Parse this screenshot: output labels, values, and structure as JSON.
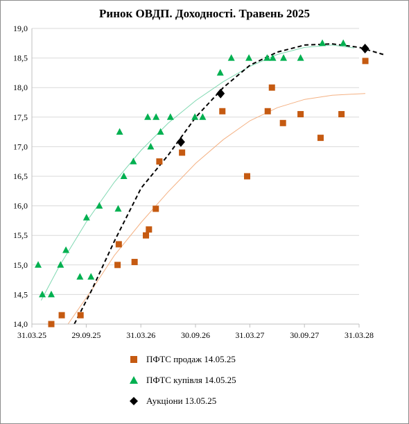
{
  "chart_data": {
    "type": "scatter",
    "title": "Ринок ОВДП. Доходності. Травень 2025",
    "xlabel": "",
    "ylabel": "",
    "x_axis_type": "date",
    "xlim": [
      "2025-03-31",
      "2028-03-31"
    ],
    "x_ticks": [
      "2025-03-31",
      "2025-09-29",
      "2026-03-31",
      "2026-09-30",
      "2027-03-31",
      "2027-09-30",
      "2028-03-31"
    ],
    "x_tick_labels": [
      "31.03.25",
      "29.09.25",
      "31.03.26",
      "30.09.26",
      "31.03.27",
      "30.09.27",
      "31.03.28"
    ],
    "ylim": [
      14.0,
      19.0
    ],
    "y_ticks": [
      14.0,
      14.5,
      15.0,
      15.5,
      16.0,
      16.5,
      17.0,
      17.5,
      18.0,
      18.5,
      19.0
    ],
    "y_tick_labels": [
      "14,0",
      "14,5",
      "15,0",
      "15,5",
      "16,0",
      "16,5",
      "17,0",
      "17,5",
      "18,0",
      "18,5",
      "19,0"
    ],
    "grid": "horizontal",
    "legend_position": "bottom",
    "series": [
      {
        "name": "ПФТС продаж 14.05.25",
        "marker": "square",
        "color": "#c55a11",
        "trend_color": "#f4b183",
        "points": [
          {
            "x": "2025-06-04",
            "y": 14.0
          },
          {
            "x": "2025-07-09",
            "y": 14.15
          },
          {
            "x": "2025-09-10",
            "y": 14.15
          },
          {
            "x": "2026-01-12",
            "y": 15.0
          },
          {
            "x": "2026-01-16",
            "y": 15.35
          },
          {
            "x": "2026-03-10",
            "y": 15.05
          },
          {
            "x": "2026-04-17",
            "y": 15.5
          },
          {
            "x": "2026-04-27",
            "y": 15.6
          },
          {
            "x": "2026-05-20",
            "y": 15.95
          },
          {
            "x": "2026-06-01",
            "y": 16.75
          },
          {
            "x": "2026-08-16",
            "y": 16.9
          },
          {
            "x": "2026-12-29",
            "y": 17.6
          },
          {
            "x": "2027-03-22",
            "y": 16.5
          },
          {
            "x": "2027-05-30",
            "y": 17.6
          },
          {
            "x": "2027-06-13",
            "y": 18.0
          },
          {
            "x": "2027-07-20",
            "y": 17.4
          },
          {
            "x": "2027-09-17",
            "y": 17.55
          },
          {
            "x": "2027-11-23",
            "y": 17.15
          },
          {
            "x": "2028-02-01",
            "y": 17.55
          },
          {
            "x": "2028-04-21",
            "y": 18.45
          }
        ],
        "trend": [
          {
            "x": "2025-07-30",
            "y": 14.0
          },
          {
            "x": "2025-10-15",
            "y": 14.56
          },
          {
            "x": "2026-01-01",
            "y": 15.16
          },
          {
            "x": "2026-04-01",
            "y": 15.72
          },
          {
            "x": "2026-07-01",
            "y": 16.24
          },
          {
            "x": "2026-10-01",
            "y": 16.72
          },
          {
            "x": "2027-01-01",
            "y": 17.12
          },
          {
            "x": "2027-04-01",
            "y": 17.44
          },
          {
            "x": "2027-07-01",
            "y": 17.66
          },
          {
            "x": "2027-10-01",
            "y": 17.8
          },
          {
            "x": "2028-01-01",
            "y": 17.87
          },
          {
            "x": "2028-04-21",
            "y": 17.9
          }
        ]
      },
      {
        "name": "ПФТС купівля 14.05.25",
        "marker": "triangle",
        "color": "#00b050",
        "trend_color": "#7fd8b1",
        "points": [
          {
            "x": "2025-04-21",
            "y": 15.0
          },
          {
            "x": "2025-05-05",
            "y": 14.5
          },
          {
            "x": "2025-06-04",
            "y": 14.5
          },
          {
            "x": "2025-07-05",
            "y": 15.0
          },
          {
            "x": "2025-07-23",
            "y": 15.25
          },
          {
            "x": "2025-09-08",
            "y": 14.8
          },
          {
            "x": "2025-09-30",
            "y": 15.8
          },
          {
            "x": "2025-10-15",
            "y": 14.8
          },
          {
            "x": "2025-11-12",
            "y": 16.0
          },
          {
            "x": "2026-01-14",
            "y": 15.95
          },
          {
            "x": "2026-01-19",
            "y": 17.25
          },
          {
            "x": "2026-02-02",
            "y": 16.5
          },
          {
            "x": "2026-03-06",
            "y": 16.75
          },
          {
            "x": "2026-04-23",
            "y": 17.5
          },
          {
            "x": "2026-05-03",
            "y": 17.0
          },
          {
            "x": "2026-05-21",
            "y": 17.5
          },
          {
            "x": "2026-06-05",
            "y": 17.25
          },
          {
            "x": "2026-07-08",
            "y": 17.5
          },
          {
            "x": "2026-09-28",
            "y": 17.5
          },
          {
            "x": "2026-10-24",
            "y": 17.5
          },
          {
            "x": "2026-12-22",
            "y": 18.25
          },
          {
            "x": "2027-01-28",
            "y": 18.5
          },
          {
            "x": "2027-03-28",
            "y": 18.5
          },
          {
            "x": "2027-05-28",
            "y": 18.5
          },
          {
            "x": "2027-06-16",
            "y": 18.5
          },
          {
            "x": "2027-07-22",
            "y": 18.5
          },
          {
            "x": "2027-09-17",
            "y": 18.5
          },
          {
            "x": "2027-11-29",
            "y": 18.75
          },
          {
            "x": "2028-02-07",
            "y": 18.75
          }
        ],
        "trend": [
          {
            "x": "2025-05-01",
            "y": 14.4
          },
          {
            "x": "2025-07-01",
            "y": 14.98
          },
          {
            "x": "2025-10-01",
            "y": 15.74
          },
          {
            "x": "2026-01-01",
            "y": 16.4
          },
          {
            "x": "2026-04-01",
            "y": 16.94
          },
          {
            "x": "2026-07-01",
            "y": 17.4
          },
          {
            "x": "2026-10-01",
            "y": 17.78
          },
          {
            "x": "2027-01-01",
            "y": 18.1
          },
          {
            "x": "2027-04-01",
            "y": 18.36
          },
          {
            "x": "2027-07-01",
            "y": 18.56
          },
          {
            "x": "2027-10-01",
            "y": 18.68
          },
          {
            "x": "2028-01-01",
            "y": 18.72
          },
          {
            "x": "2028-03-15",
            "y": 18.67
          }
        ]
      },
      {
        "name": "Аукціони 13.05.25",
        "marker": "diamond",
        "color": "#000000",
        "trend_color": "#000000",
        "points": [
          {
            "x": "2026-08-12",
            "y": 17.08
          },
          {
            "x": "2026-12-23",
            "y": 17.9
          },
          {
            "x": "2028-04-20",
            "y": 18.66
          }
        ],
        "trend": [
          {
            "x": "2025-08-20",
            "y": 14.0
          },
          {
            "x": "2025-10-15",
            "y": 14.55
          },
          {
            "x": "2026-01-01",
            "y": 15.4
          },
          {
            "x": "2026-04-01",
            "y": 16.3
          },
          {
            "x": "2026-07-01",
            "y": 16.86
          },
          {
            "x": "2026-10-01",
            "y": 17.5
          },
          {
            "x": "2027-01-01",
            "y": 18.0
          },
          {
            "x": "2027-04-01",
            "y": 18.38
          },
          {
            "x": "2027-07-01",
            "y": 18.6
          },
          {
            "x": "2027-10-01",
            "y": 18.72
          },
          {
            "x": "2028-01-01",
            "y": 18.74
          },
          {
            "x": "2028-04-01",
            "y": 18.68
          },
          {
            "x": "2028-06-20",
            "y": 18.56
          }
        ]
      }
    ]
  }
}
